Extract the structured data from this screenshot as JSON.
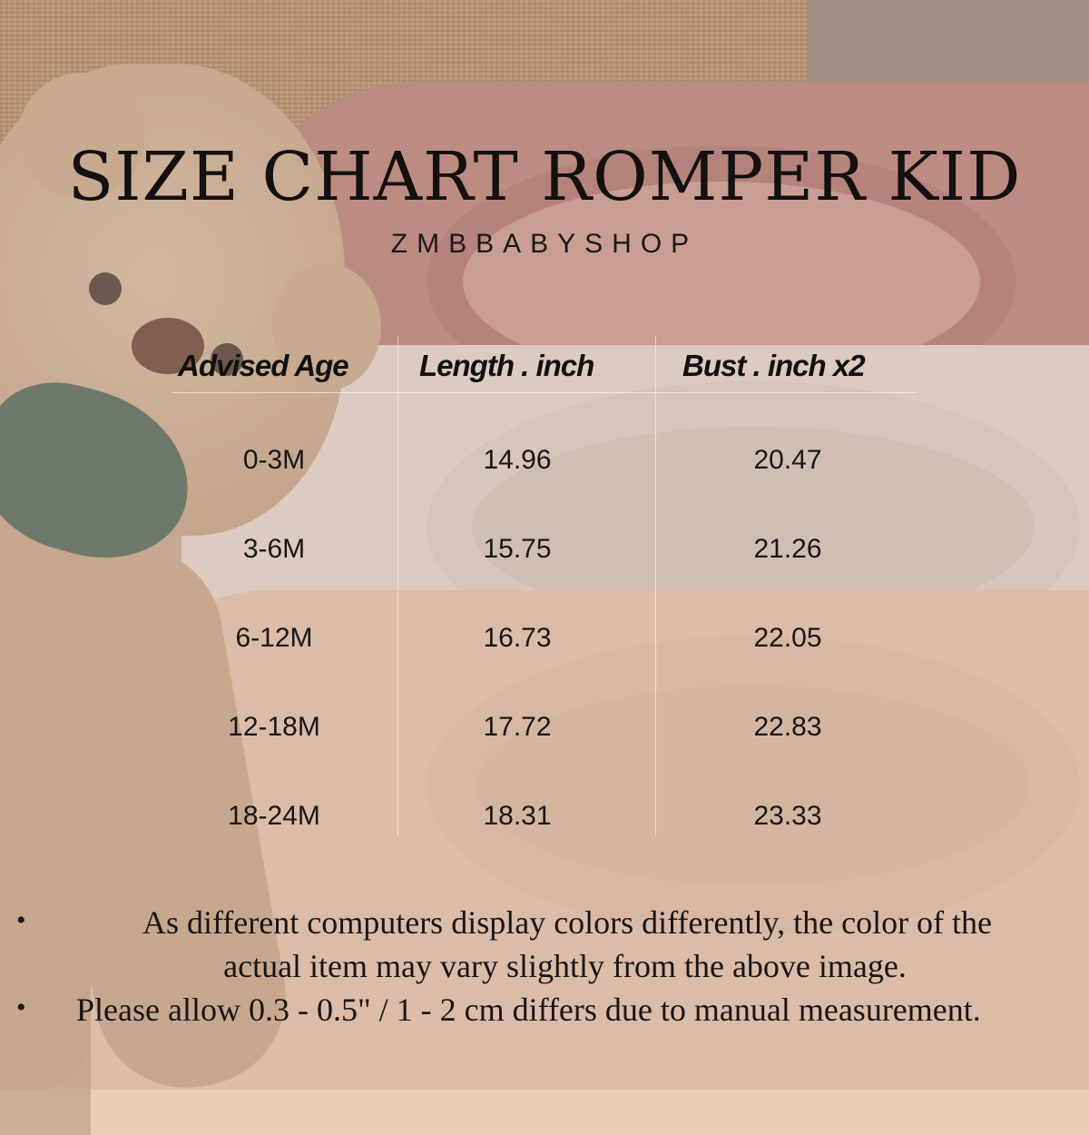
{
  "title": "SIZE CHART ROMPER KID",
  "brand": "ZMBBABYSHOP",
  "table": {
    "headers": [
      "Advised Age",
      "Length . inch",
      "Bust . inch x2"
    ],
    "rows": [
      [
        "0-3M",
        "14.96",
        "20.47"
      ],
      [
        "3-6M",
        "15.75",
        "21.26"
      ],
      [
        "6-12M",
        "16.73",
        "22.05"
      ],
      [
        "12-18M",
        "17.72",
        "22.83"
      ],
      [
        "18-24M",
        "18.31",
        "23.33"
      ]
    ]
  },
  "notes": [
    "As different computers display colors differently, the color of the",
    "actual item may vary slightly from the above image.",
    "Please allow 0.3 - 0.5\" / 1 - 2 cm differs due to manual measurement."
  ],
  "bullet": "•"
}
